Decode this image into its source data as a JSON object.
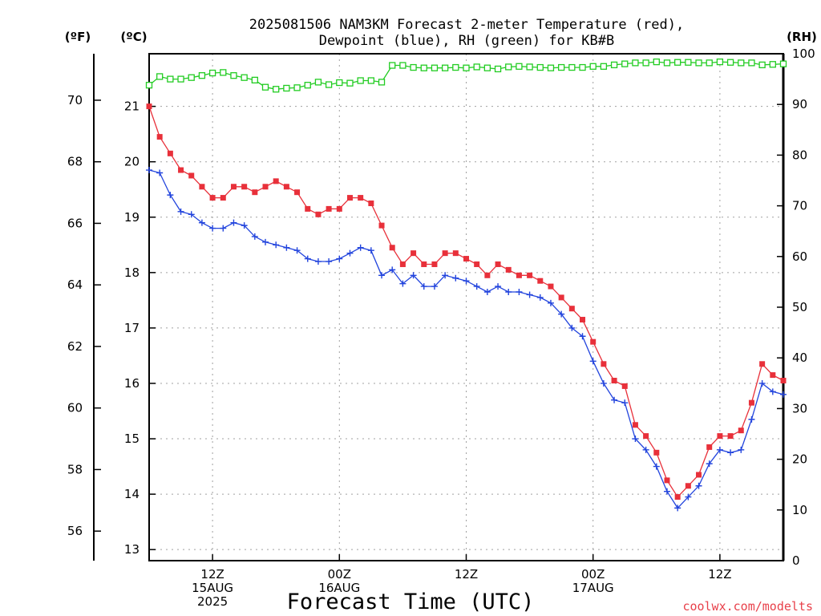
{
  "chart_data": {
    "type": "line",
    "title_line1": "2025081506 NAM3KM Forecast 2-meter Temperature (red),",
    "title_line2": "Dewpoint (blue), RH (green) for KB#B",
    "xlabel": "Forecast Time (UTC)",
    "credit": "coolwx.com/modelts",
    "left_unit_f": "(ºF)",
    "left_unit_c": "(ºC)",
    "right_unit": "(RH)",
    "yticks_f": [
      "56",
      "58",
      "60",
      "62",
      "64",
      "66",
      "68",
      "70"
    ],
    "yticks_c": [
      "13",
      "14",
      "15",
      "16",
      "17",
      "18",
      "19",
      "20",
      "21"
    ],
    "yticks_rh": [
      "0",
      "10",
      "20",
      "30",
      "40",
      "50",
      "60",
      "70",
      "80",
      "90",
      "100"
    ],
    "x_range_hours": [
      0,
      60
    ],
    "y_range_c": [
      12.8,
      21.95
    ],
    "rh_range": [
      0,
      100
    ],
    "grid": true,
    "x_ticks": [
      {
        "hour": 6,
        "lines": [
          "12Z",
          "15AUG",
          "2025"
        ]
      },
      {
        "hour": 18,
        "lines": [
          "00Z",
          "16AUG"
        ]
      },
      {
        "hour": 30,
        "lines": [
          "12Z"
        ]
      },
      {
        "hour": 42,
        "lines": [
          "00Z",
          "17AUG"
        ]
      },
      {
        "hour": 54,
        "lines": [
          "12Z"
        ]
      }
    ],
    "x_hours": [
      0,
      1,
      2,
      3,
      4,
      5,
      6,
      7,
      8,
      9,
      10,
      11,
      12,
      13,
      14,
      15,
      16,
      17,
      18,
      19,
      20,
      21,
      22,
      23,
      24,
      25,
      26,
      27,
      28,
      29,
      30,
      31,
      32,
      33,
      34,
      35,
      36,
      37,
      38,
      39,
      40,
      41,
      42,
      43,
      44,
      45,
      46,
      47,
      48,
      49,
      50,
      51,
      52,
      53,
      54,
      55,
      56,
      57,
      58,
      59,
      60
    ],
    "series": [
      {
        "name": "Temperature",
        "color": "#e8303a",
        "marker": "filled-square",
        "values": [
          21.0,
          20.45,
          20.15,
          19.85,
          19.75,
          19.55,
          19.35,
          19.35,
          19.55,
          19.55,
          19.45,
          19.55,
          19.65,
          19.55,
          19.45,
          19.15,
          19.05,
          19.15,
          19.15,
          19.35,
          19.35,
          19.25,
          18.85,
          18.45,
          18.15,
          18.35,
          18.15,
          18.15,
          18.35,
          18.35,
          18.25,
          18.15,
          17.95,
          18.15,
          18.05,
          17.95,
          17.95,
          17.85,
          17.75,
          17.55,
          17.35,
          17.15,
          16.75,
          16.35,
          16.05,
          15.95,
          15.25,
          15.05,
          14.75,
          14.25,
          13.95,
          14.15,
          14.35,
          14.85,
          15.05,
          15.05,
          15.15,
          15.65,
          16.35,
          16.15,
          16.05
        ]
      },
      {
        "name": "Dewpoint",
        "color": "#2244dd",
        "marker": "plus",
        "values": [
          19.85,
          19.8,
          19.4,
          19.1,
          19.05,
          18.9,
          18.8,
          18.8,
          18.9,
          18.85,
          18.65,
          18.55,
          18.5,
          18.45,
          18.4,
          18.25,
          18.2,
          18.2,
          18.25,
          18.35,
          18.45,
          18.4,
          17.95,
          18.05,
          17.8,
          17.95,
          17.75,
          17.75,
          17.95,
          17.9,
          17.85,
          17.75,
          17.65,
          17.75,
          17.65,
          17.65,
          17.6,
          17.55,
          17.45,
          17.25,
          17.0,
          16.85,
          16.4,
          16.0,
          15.7,
          15.65,
          15.0,
          14.8,
          14.5,
          14.05,
          13.75,
          13.95,
          14.15,
          14.55,
          14.8,
          14.75,
          14.8,
          15.35,
          16.0,
          15.85,
          15.8
        ]
      },
      {
        "name": "RH",
        "color": "#22cc22",
        "marker": "open-square",
        "values": [
          93.8,
          95.5,
          95.0,
          95.0,
          95.3,
          95.7,
          96.2,
          96.3,
          95.7,
          95.3,
          94.8,
          93.4,
          93.0,
          93.2,
          93.3,
          93.8,
          94.4,
          93.9,
          94.3,
          94.2,
          94.7,
          94.7,
          94.4,
          97.7,
          97.7,
          97.3,
          97.2,
          97.2,
          97.2,
          97.3,
          97.2,
          97.4,
          97.2,
          97.0,
          97.4,
          97.5,
          97.4,
          97.3,
          97.2,
          97.3,
          97.3,
          97.3,
          97.5,
          97.5,
          97.8,
          98.0,
          98.2,
          98.2,
          98.4,
          98.2,
          98.3,
          98.3,
          98.2,
          98.2,
          98.4,
          98.3,
          98.2,
          98.2,
          97.8,
          97.9,
          98.0
        ]
      }
    ]
  }
}
